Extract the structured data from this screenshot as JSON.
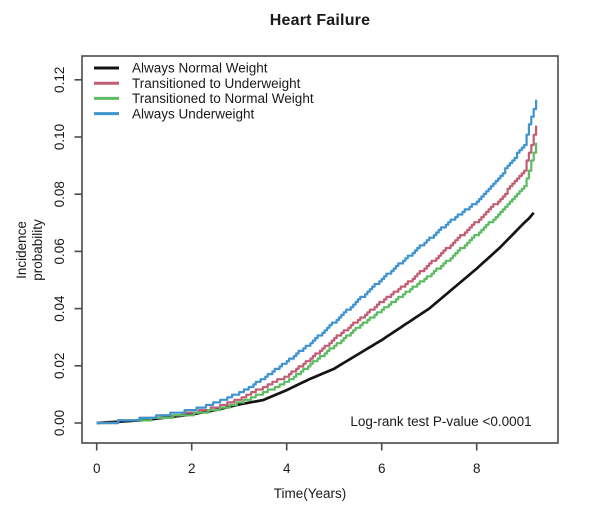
{
  "title": "Heart Failure",
  "chart_data": {
    "type": "line",
    "title": "Heart Failure",
    "xlabel": "Time(Years)",
    "ylabel": "Incidence probability",
    "ylabel_lines": [
      "Incidence",
      "probability"
    ],
    "annotation": "Log-rank test P-value <0.0001",
    "legend_position": "top-left",
    "grid": false,
    "xlim": [
      0,
      9.3
    ],
    "ylim": [
      0,
      0.12
    ],
    "xticks": [
      0,
      2,
      4,
      6,
      8
    ],
    "ytick_values": [
      0.0,
      0.02,
      0.04,
      0.06,
      0.08,
      0.1,
      0.12
    ],
    "ytick_labels": [
      "0.00",
      "0.02",
      "0.04",
      "0.06",
      "0.08",
      "0.10",
      "0.12"
    ],
    "axis_color": "#4a4a4a",
    "x": [
      0,
      0.5,
      1,
      1.5,
      2,
      2.5,
      3,
      3.5,
      4,
      4.5,
      5,
      5.5,
      6,
      6.5,
      7,
      7.5,
      8,
      8.5,
      9,
      9.1,
      9.25
    ],
    "series": [
      {
        "name": "Always Normal Weight",
        "color": "#141414",
        "style": "smooth",
        "values": [
          0,
          0.0005,
          0.001,
          0.002,
          0.003,
          0.0045,
          0.0065,
          0.008,
          0.0115,
          0.0155,
          0.019,
          0.024,
          0.029,
          0.0345,
          0.04,
          0.047,
          0.054,
          0.0615,
          0.07,
          0.0715,
          0.0745
        ]
      },
      {
        "name": "Transitioned to Underweight",
        "color": "#c25e74",
        "style": "step",
        "values": [
          0,
          0.001,
          0.002,
          0.003,
          0.004,
          0.006,
          0.009,
          0.013,
          0.017,
          0.023,
          0.03,
          0.0365,
          0.043,
          0.049,
          0.056,
          0.0635,
          0.071,
          0.079,
          0.089,
          0.095,
          0.104
        ]
      },
      {
        "name": "Transitioned to Normal Weight",
        "color": "#5dbb63",
        "style": "step",
        "values": [
          0,
          0.001,
          0.0015,
          0.0025,
          0.0035,
          0.005,
          0.0075,
          0.011,
          0.015,
          0.021,
          0.0275,
          0.034,
          0.04,
          0.046,
          0.052,
          0.059,
          0.0665,
          0.074,
          0.083,
          0.089,
          0.098
        ]
      },
      {
        "name": "Always Underweight",
        "color": "#3f94cf",
        "style": "step",
        "values": [
          0,
          0.001,
          0.002,
          0.0035,
          0.005,
          0.0075,
          0.011,
          0.016,
          0.022,
          0.0285,
          0.036,
          0.0435,
          0.051,
          0.058,
          0.065,
          0.072,
          0.078,
          0.087,
          0.098,
          0.105,
          0.113
        ]
      }
    ]
  }
}
